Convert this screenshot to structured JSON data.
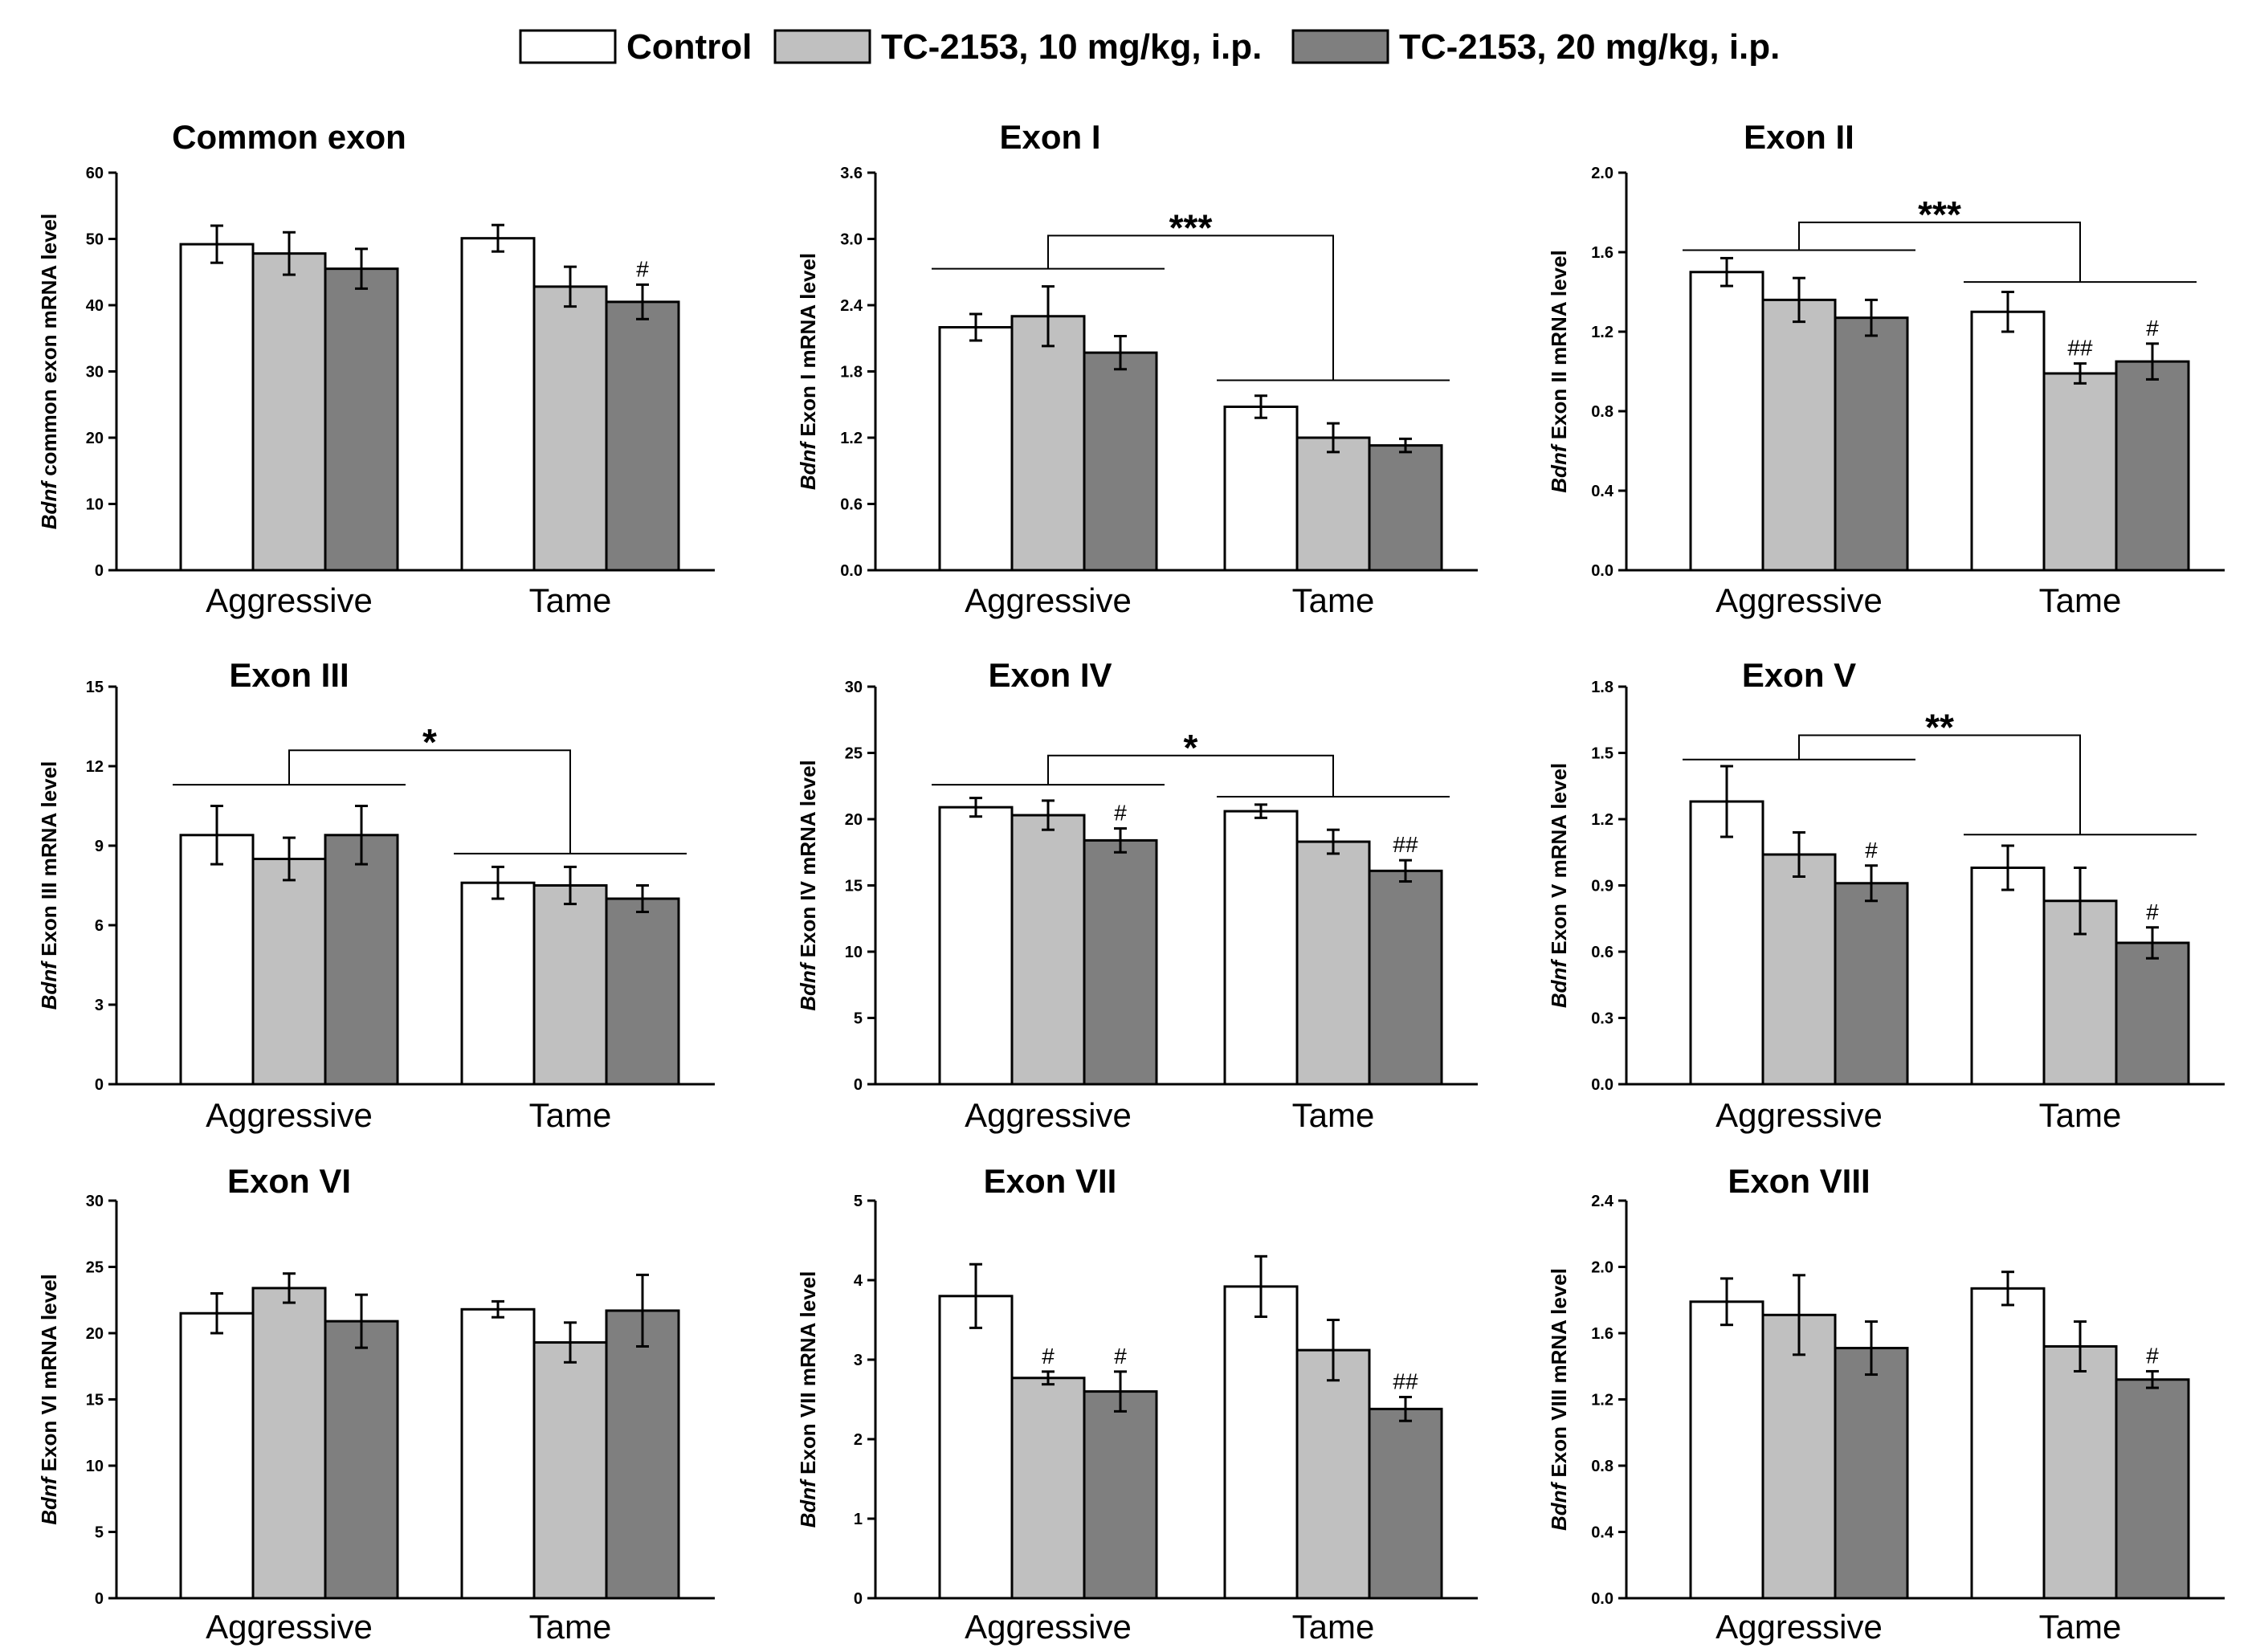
{
  "legend": [
    {
      "label": "Control",
      "color": "#ffffff"
    },
    {
      "label": "TC-2153, 10 mg/kg, i.p.",
      "color": "#c0c0c0"
    },
    {
      "label": "TC-2153, 20 mg/kg, i.p.",
      "color": "#7f7f7f"
    }
  ],
  "chart_data": [
    {
      "type": "bar",
      "title": "Common exon",
      "ylabel_italic": "Bdnf",
      "ylabel": " common exon mRNA level",
      "categories": [
        "Aggressive",
        "Tame"
      ],
      "ylim": [
        0,
        60
      ],
      "yticks": [
        "0",
        "10",
        "20",
        "30",
        "40",
        "50",
        "60"
      ],
      "series": [
        {
          "name": "Control",
          "values": [
            49.2,
            50.1
          ],
          "errors": [
            2.8,
            2.0
          ]
        },
        {
          "name": "TC-2153, 10 mg/kg, i.p.",
          "values": [
            47.8,
            42.8
          ],
          "errors": [
            3.2,
            3.0
          ]
        },
        {
          "name": "TC-2153, 20 mg/kg, i.p.",
          "values": [
            45.5,
            40.5
          ],
          "errors": [
            3.0,
            2.6
          ]
        }
      ],
      "marks": [
        {
          "group": 1,
          "series": 2,
          "text": "#"
        }
      ],
      "significance": null
    },
    {
      "type": "bar",
      "title": "Exon I",
      "ylabel_italic": "Bdnf",
      "ylabel": " Exon I mRNA level",
      "categories": [
        "Aggressive",
        "Tame"
      ],
      "ylim": [
        0,
        3.6
      ],
      "yticks": [
        "0.0",
        "0.6",
        "1.2",
        "1.8",
        "2.4",
        "3.0",
        "3.6"
      ],
      "series": [
        {
          "name": "Control",
          "values": [
            2.2,
            1.48
          ],
          "errors": [
            0.12,
            0.1
          ]
        },
        {
          "name": "TC-2153, 10 mg/kg, i.p.",
          "values": [
            2.3,
            1.2
          ],
          "errors": [
            0.27,
            0.13
          ]
        },
        {
          "name": "TC-2153, 20 mg/kg, i.p.",
          "values": [
            1.97,
            1.13
          ],
          "errors": [
            0.15,
            0.06
          ]
        }
      ],
      "marks": [],
      "significance": {
        "text": "***",
        "left_line": 2.73,
        "right_line": 1.72,
        "top": 3.03
      }
    },
    {
      "type": "bar",
      "title": "Exon II",
      "ylabel_italic": "Bdnf",
      "ylabel": " Exon II mRNA level",
      "categories": [
        "Aggressive",
        "Tame"
      ],
      "ylim": [
        0,
        2.0
      ],
      "yticks": [
        "0.0",
        "0.4",
        "0.8",
        "1.2",
        "1.6",
        "2.0"
      ],
      "series": [
        {
          "name": "Control",
          "values": [
            1.5,
            1.3
          ],
          "errors": [
            0.07,
            0.1
          ]
        },
        {
          "name": "TC-2153, 10 mg/kg, i.p.",
          "values": [
            1.36,
            0.99
          ],
          "errors": [
            0.11,
            0.05
          ]
        },
        {
          "name": "TC-2153, 20 mg/kg, i.p.",
          "values": [
            1.27,
            1.05
          ],
          "errors": [
            0.09,
            0.09
          ]
        }
      ],
      "marks": [
        {
          "group": 1,
          "series": 1,
          "text": "##"
        },
        {
          "group": 1,
          "series": 2,
          "text": "#"
        }
      ],
      "significance": {
        "text": "***",
        "left_line": 1.61,
        "right_line": 1.45,
        "top": 1.75
      }
    },
    {
      "type": "bar",
      "title": "Exon III",
      "ylabel_italic": "Bdnf",
      "ylabel": " Exon III mRNA level",
      "categories": [
        "Aggressive",
        "Tame"
      ],
      "ylim": [
        0,
        15
      ],
      "yticks": [
        "0",
        "3",
        "6",
        "9",
        "12",
        "15"
      ],
      "series": [
        {
          "name": "Control",
          "values": [
            9.4,
            7.6
          ],
          "errors": [
            1.1,
            0.6
          ]
        },
        {
          "name": "TC-2153, 10 mg/kg, i.p.",
          "values": [
            8.5,
            7.5
          ],
          "errors": [
            0.8,
            0.7
          ]
        },
        {
          "name": "TC-2153, 20 mg/kg, i.p.",
          "values": [
            9.4,
            7.0
          ],
          "errors": [
            1.1,
            0.5
          ]
        }
      ],
      "marks": [],
      "significance": {
        "text": "*",
        "left_line": 11.3,
        "right_line": 8.7,
        "top": 12.6
      }
    },
    {
      "type": "bar",
      "title": "Exon IV",
      "ylabel_italic": "Bdnf",
      "ylabel": " Exon IV mRNA level",
      "categories": [
        "Aggressive",
        "Tame"
      ],
      "ylim": [
        0,
        30
      ],
      "yticks": [
        "0",
        "5",
        "10",
        "15",
        "20",
        "25",
        "30"
      ],
      "series": [
        {
          "name": "Control",
          "values": [
            20.9,
            20.6
          ],
          "errors": [
            0.7,
            0.5
          ]
        },
        {
          "name": "TC-2153, 10 mg/kg, i.p.",
          "values": [
            20.3,
            18.3
          ],
          "errors": [
            1.1,
            0.9
          ]
        },
        {
          "name": "TC-2153, 20 mg/kg, i.p.",
          "values": [
            18.4,
            16.1
          ],
          "errors": [
            0.9,
            0.8
          ]
        }
      ],
      "marks": [
        {
          "group": 0,
          "series": 2,
          "text": "#"
        },
        {
          "group": 1,
          "series": 2,
          "text": "##"
        }
      ],
      "significance": {
        "text": "*",
        "left_line": 22.6,
        "right_line": 21.7,
        "top": 24.8
      }
    },
    {
      "type": "bar",
      "title": "Exon V",
      "ylabel_italic": "Bdnf",
      "ylabel": " Exon V mRNA level",
      "categories": [
        "Aggressive",
        "Tame"
      ],
      "ylim": [
        0,
        1.8
      ],
      "yticks": [
        "0.0",
        "0.3",
        "0.6",
        "0.9",
        "1.2",
        "1.5",
        "1.8"
      ],
      "series": [
        {
          "name": "Control",
          "values": [
            1.28,
            0.98
          ],
          "errors": [
            0.16,
            0.1
          ]
        },
        {
          "name": "TC-2153, 10 mg/kg, i.p.",
          "values": [
            1.04,
            0.83
          ],
          "errors": [
            0.1,
            0.15
          ]
        },
        {
          "name": "TC-2153, 20 mg/kg, i.p.",
          "values": [
            0.91,
            0.64
          ],
          "errors": [
            0.08,
            0.07
          ]
        }
      ],
      "marks": [
        {
          "group": 0,
          "series": 2,
          "text": "#"
        },
        {
          "group": 1,
          "series": 2,
          "text": "#"
        }
      ],
      "significance": {
        "text": "**",
        "left_line": 1.47,
        "right_line": 1.13,
        "top": 1.58
      }
    },
    {
      "type": "bar",
      "title": "Exon VI",
      "ylabel_italic": "Bdnf",
      "ylabel": " Exon VI mRNA level",
      "categories": [
        "Aggressive",
        "Tame"
      ],
      "ylim": [
        0,
        30
      ],
      "yticks": [
        "0",
        "5",
        "10",
        "15",
        "20",
        "25",
        "30"
      ],
      "series": [
        {
          "name": "Control",
          "values": [
            21.5,
            21.8
          ],
          "errors": [
            1.5,
            0.6
          ]
        },
        {
          "name": "TC-2153, 10 mg/kg, i.p.",
          "values": [
            23.4,
            19.3
          ],
          "errors": [
            1.1,
            1.5
          ]
        },
        {
          "name": "TC-2153, 20 mg/kg, i.p.",
          "values": [
            20.9,
            21.7
          ],
          "errors": [
            2.0,
            2.7
          ]
        }
      ],
      "marks": [],
      "significance": null
    },
    {
      "type": "bar",
      "title": "Exon VII",
      "ylabel_italic": "Bdnf",
      "ylabel": " Exon VII mRNA level",
      "categories": [
        "Aggressive",
        "Tame"
      ],
      "ylim": [
        0,
        5
      ],
      "yticks": [
        "0",
        "1",
        "2",
        "3",
        "4",
        "5"
      ],
      "series": [
        {
          "name": "Control",
          "values": [
            3.8,
            3.92
          ],
          "errors": [
            0.4,
            0.38
          ]
        },
        {
          "name": "TC-2153, 10 mg/kg, i.p.",
          "values": [
            2.77,
            3.12
          ],
          "errors": [
            0.08,
            0.38
          ]
        },
        {
          "name": "TC-2153, 20 mg/kg, i.p.",
          "values": [
            2.6,
            2.38
          ],
          "errors": [
            0.25,
            0.15
          ]
        }
      ],
      "marks": [
        {
          "group": 0,
          "series": 1,
          "text": "#"
        },
        {
          "group": 0,
          "series": 2,
          "text": "#"
        },
        {
          "group": 1,
          "series": 2,
          "text": "##"
        }
      ],
      "significance": null
    },
    {
      "type": "bar",
      "title": "Exon VIII",
      "ylabel_italic": "Bdnf",
      "ylabel": " Exon VIII mRNA level",
      "categories": [
        "Aggressive",
        "Tame"
      ],
      "ylim": [
        0,
        2.4
      ],
      "yticks": [
        "0.0",
        "0.4",
        "0.8",
        "1.2",
        "1.6",
        "2.0",
        "2.4"
      ],
      "series": [
        {
          "name": "Control",
          "values": [
            1.79,
            1.87
          ],
          "errors": [
            0.14,
            0.1
          ]
        },
        {
          "name": "TC-2153, 10 mg/kg, i.p.",
          "values": [
            1.71,
            1.52
          ],
          "errors": [
            0.24,
            0.15
          ]
        },
        {
          "name": "TC-2153, 20 mg/kg, i.p.",
          "values": [
            1.51,
            1.32
          ],
          "errors": [
            0.16,
            0.05
          ]
        }
      ],
      "marks": [
        {
          "group": 1,
          "series": 2,
          "text": "#"
        }
      ],
      "significance": null
    }
  ]
}
